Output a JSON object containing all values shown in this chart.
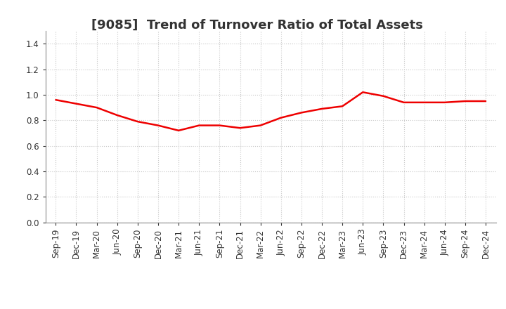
{
  "title": "[9085]  Trend of Turnover Ratio of Total Assets",
  "x_labels": [
    "Sep-19",
    "Dec-19",
    "Mar-20",
    "Jun-20",
    "Sep-20",
    "Dec-20",
    "Mar-21",
    "Jun-21",
    "Sep-21",
    "Dec-21",
    "Mar-22",
    "Jun-22",
    "Sep-22",
    "Dec-22",
    "Mar-23",
    "Jun-23",
    "Sep-23",
    "Dec-23",
    "Mar-24",
    "Jun-24",
    "Sep-24",
    "Dec-24"
  ],
  "y_values": [
    0.96,
    0.93,
    0.9,
    0.84,
    0.79,
    0.76,
    0.72,
    0.76,
    0.76,
    0.74,
    0.76,
    0.82,
    0.86,
    0.89,
    0.91,
    1.02,
    0.99,
    0.94,
    0.94,
    0.94,
    0.95,
    0.95
  ],
  "line_color": "#ee0000",
  "line_width": 1.8,
  "ylim": [
    0.0,
    1.5
  ],
  "yticks": [
    0.0,
    0.2,
    0.4,
    0.6,
    0.8,
    1.0,
    1.2,
    1.4
  ],
  "grid_color": "#c8c8c8",
  "grid_style": "dotted",
  "background_color": "#ffffff",
  "title_fontsize": 13,
  "tick_fontsize": 8.5,
  "title_color": "#333333",
  "tick_color": "#333333"
}
